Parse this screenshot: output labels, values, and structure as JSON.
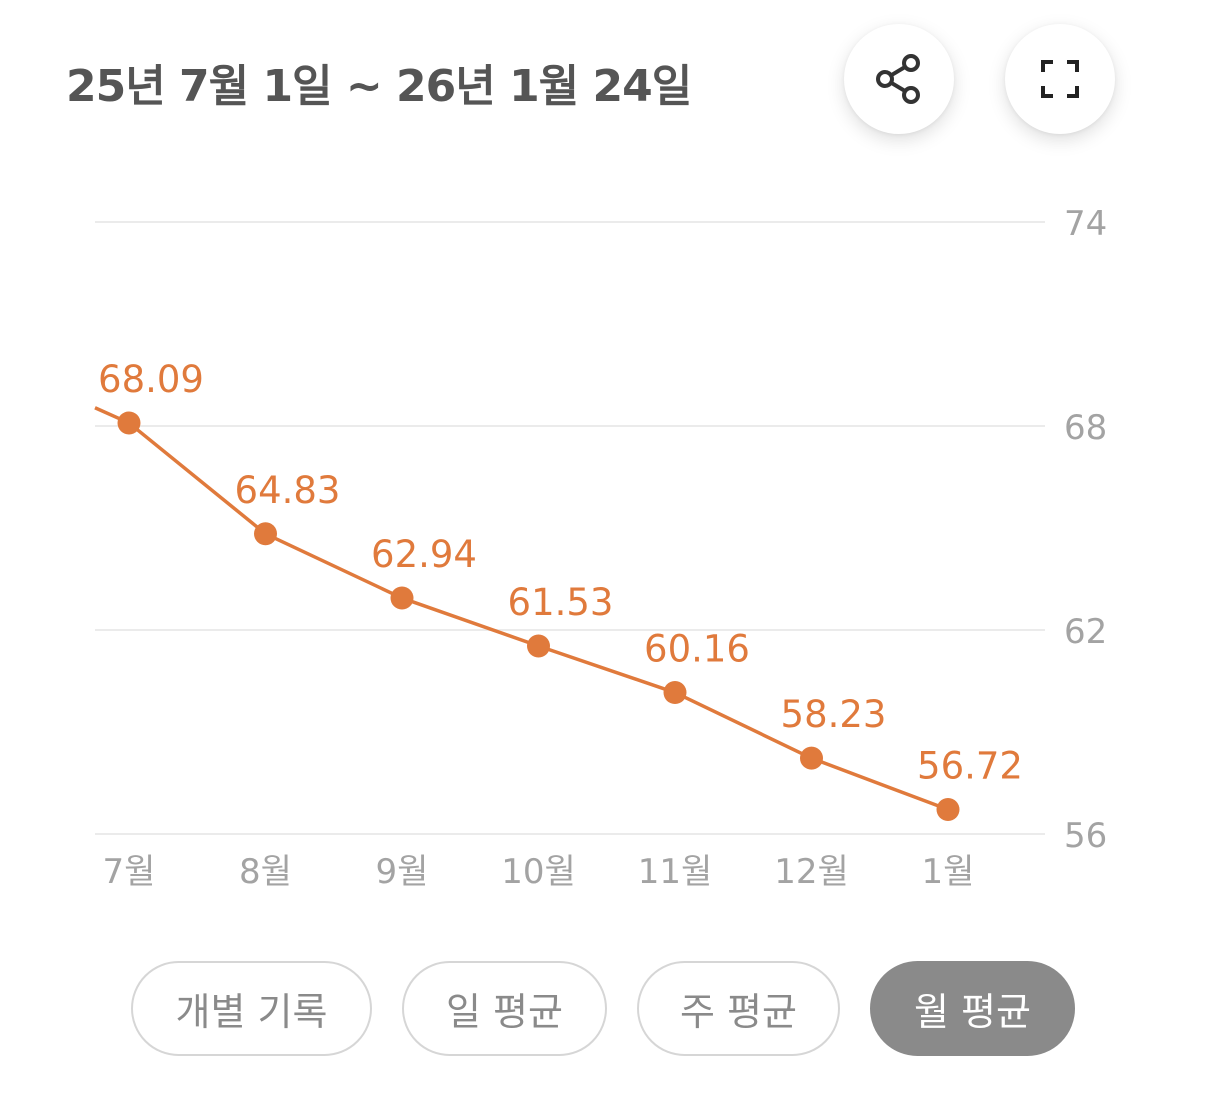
{
  "header": {
    "date_range": "25년 7월 1일 ~ 26년 1월 24일",
    "share_icon": "share-icon",
    "fullscreen_icon": "fullscreen-icon"
  },
  "chart_data": {
    "type": "line",
    "title": "",
    "xlabel": "",
    "ylabel": "",
    "categories": [
      "7월",
      "8월",
      "9월",
      "10월",
      "11월",
      "12월",
      "1월"
    ],
    "series": [
      {
        "values": [
          68.09,
          64.83,
          62.94,
          61.53,
          60.16,
          58.23,
          56.72
        ]
      }
    ],
    "ylim": [
      56,
      74
    ],
    "yticks": [
      56,
      62,
      68,
      74
    ],
    "y_axis_position": "right",
    "grid": true,
    "point_labels": true,
    "line_color": "#e07a3c"
  },
  "tabs": [
    {
      "label": "개별 기록",
      "active": false
    },
    {
      "label": "일 평균",
      "active": false
    },
    {
      "label": "주 평균",
      "active": false
    },
    {
      "label": "월 평균",
      "active": true
    }
  ],
  "colors": {
    "accent": "#e07a3c",
    "active_tab": "#8a8a8a",
    "text_gray": "#555555"
  }
}
